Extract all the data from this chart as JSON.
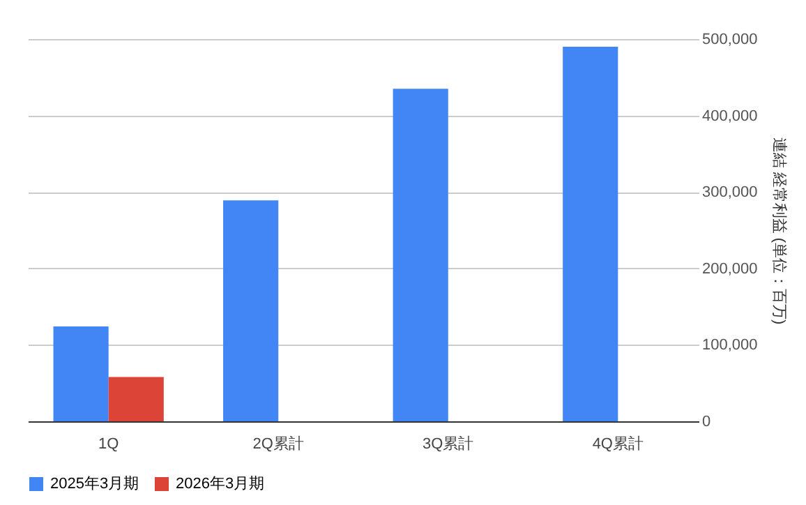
{
  "chart_data": {
    "type": "bar",
    "categories": [
      "1Q",
      "2Q累計",
      "3Q累計",
      "4Q累計"
    ],
    "ylabel": "連結 経常利益 (単位：百万)",
    "series": [
      {
        "name": "2025年3月期",
        "color": "#4285f4",
        "values": [
          124000,
          289000,
          435000,
          490000
        ]
      },
      {
        "name": "2026年3月期",
        "color": "#db4437",
        "values": [
          58000,
          null,
          null,
          null
        ]
      }
    ],
    "ylim": [
      0,
      500000
    ],
    "yticks": [
      {
        "value": 0,
        "label": "0"
      },
      {
        "value": 100000,
        "label": "100,000"
      },
      {
        "value": 200000,
        "label": "200,000"
      },
      {
        "value": 300000,
        "label": "300,000"
      },
      {
        "value": 400000,
        "label": "400,000"
      },
      {
        "value": 500000,
        "label": "500,000"
      }
    ],
    "grid": "y",
    "legend": "bottom"
  }
}
